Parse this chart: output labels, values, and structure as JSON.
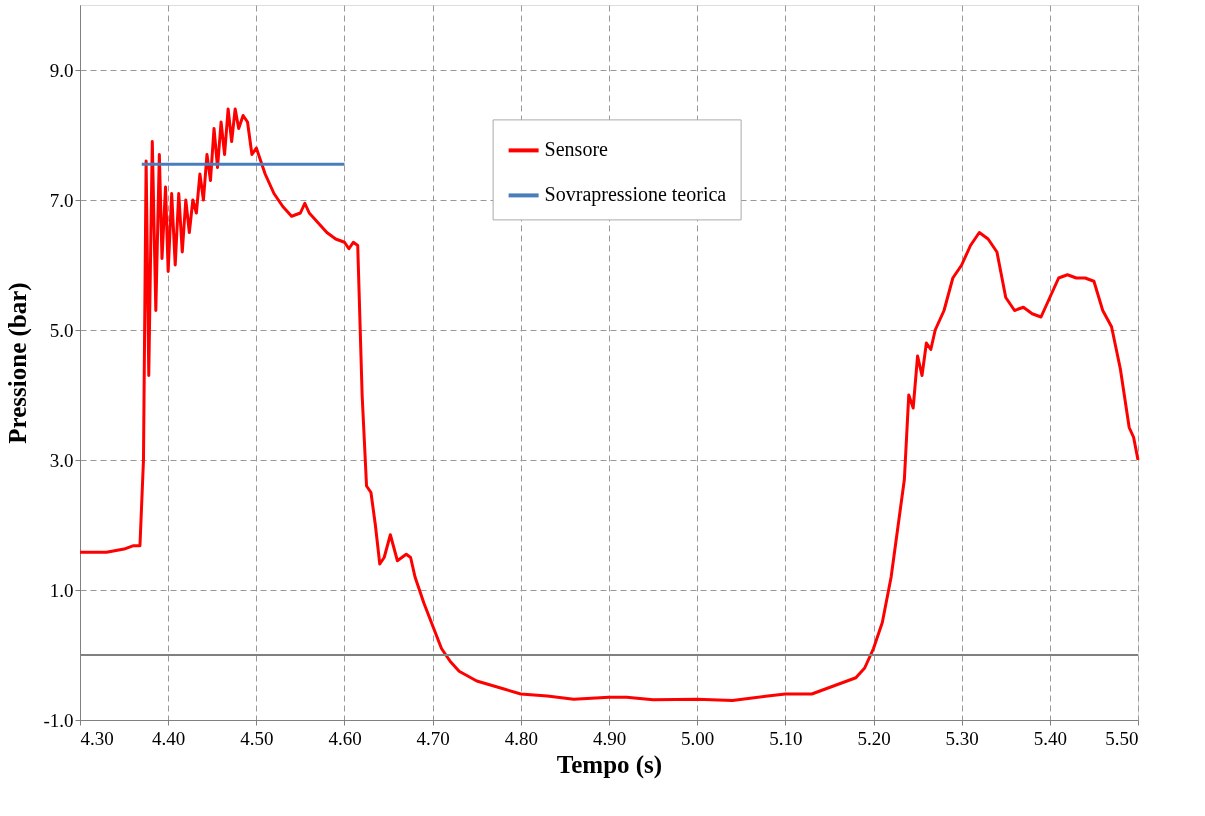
{
  "chart_data": {
    "type": "line",
    "xlabel": "Tempo (s)",
    "ylabel": "Pressione (bar)",
    "xlim": [
      4.3,
      5.5
    ],
    "ylim": [
      -1,
      10
    ],
    "xticks": [
      {
        "value": 4.3,
        "label": "4.30"
      },
      {
        "value": 4.4,
        "label": "4.40"
      },
      {
        "value": 4.5,
        "label": "4.50"
      },
      {
        "value": 4.6,
        "label": "4.60"
      },
      {
        "value": 4.7,
        "label": "4.70"
      },
      {
        "value": 4.8,
        "label": "4.80"
      },
      {
        "value": 4.9,
        "label": "4.90"
      },
      {
        "value": 5.0,
        "label": "5.00"
      },
      {
        "value": 5.1,
        "label": "5.10"
      },
      {
        "value": 5.2,
        "label": "5.20"
      },
      {
        "value": 5.3,
        "label": "5.30"
      },
      {
        "value": 5.4,
        "label": "5.40"
      },
      {
        "value": 5.5,
        "label": "5.50"
      }
    ],
    "yticks": [
      {
        "value": -1,
        "label": "-1.0"
      },
      {
        "value": 1,
        "label": "1.0"
      },
      {
        "value": 3,
        "label": "3.0"
      },
      {
        "value": 5,
        "label": "5.0"
      },
      {
        "value": 7,
        "label": "7.0"
      },
      {
        "value": 9,
        "label": "9.0"
      }
    ],
    "grid": true,
    "legend": "top",
    "line_style": "solid",
    "marker": "none",
    "ref_lines": [
      {
        "axis": "y",
        "value": 0,
        "label": null,
        "color": "#808080",
        "line_style": "solid"
      }
    ],
    "series": [
      {
        "name": "Sensore",
        "color": "#ff0000",
        "x": [
          4.3,
          4.33,
          4.35,
          4.36,
          4.368,
          4.372,
          4.375,
          4.378,
          4.382,
          4.386,
          4.39,
          4.393,
          4.397,
          4.4,
          4.404,
          4.408,
          4.412,
          4.416,
          4.42,
          4.424,
          4.428,
          4.432,
          4.436,
          4.44,
          4.444,
          4.448,
          4.452,
          4.456,
          4.46,
          4.464,
          4.468,
          4.472,
          4.476,
          4.48,
          4.485,
          4.49,
          4.495,
          4.5,
          4.505,
          4.51,
          4.52,
          4.53,
          4.54,
          4.55,
          4.555,
          4.56,
          4.57,
          4.58,
          4.59,
          4.6,
          4.605,
          4.61,
          4.615,
          4.62,
          4.625,
          4.63,
          4.635,
          4.64,
          4.645,
          4.652,
          4.66,
          4.67,
          4.675,
          4.68,
          4.69,
          4.7,
          4.71,
          4.72,
          4.73,
          4.75,
          4.78,
          4.8,
          4.83,
          4.86,
          4.9,
          4.92,
          4.95,
          5.0,
          5.04,
          5.08,
          5.1,
          5.13,
          5.15,
          5.18,
          5.19,
          5.2,
          5.21,
          5.22,
          5.23,
          5.235,
          5.24,
          5.245,
          5.25,
          5.255,
          5.26,
          5.265,
          5.27,
          5.28,
          5.29,
          5.3,
          5.31,
          5.32,
          5.33,
          5.34,
          5.35,
          5.355,
          5.36,
          5.37,
          5.38,
          5.39,
          5.4,
          5.41,
          5.42,
          5.43,
          5.44,
          5.45,
          5.46,
          5.47,
          5.48,
          5.49,
          5.495,
          5.5
        ],
        "values": [
          1.58,
          1.58,
          1.63,
          1.68,
          1.68,
          3.0,
          7.6,
          4.3,
          7.9,
          5.3,
          7.7,
          6.1,
          7.2,
          5.9,
          7.1,
          6.0,
          7.1,
          6.2,
          7.0,
          6.5,
          7.0,
          6.8,
          7.4,
          7.0,
          7.7,
          7.3,
          8.1,
          7.5,
          8.2,
          7.7,
          8.4,
          7.9,
          8.4,
          8.1,
          8.3,
          8.2,
          7.7,
          7.8,
          7.6,
          7.4,
          7.1,
          6.9,
          6.75,
          6.8,
          6.95,
          6.8,
          6.65,
          6.5,
          6.4,
          6.35,
          6.25,
          6.35,
          6.3,
          4.0,
          2.6,
          2.5,
          2.0,
          1.4,
          1.5,
          1.85,
          1.45,
          1.55,
          1.5,
          1.2,
          0.8,
          0.45,
          0.1,
          -0.1,
          -0.25,
          -0.4,
          -0.52,
          -0.6,
          -0.63,
          -0.68,
          -0.65,
          -0.65,
          -0.69,
          -0.68,
          -0.7,
          -0.63,
          -0.6,
          -0.6,
          -0.5,
          -0.35,
          -0.2,
          0.1,
          0.5,
          1.2,
          2.2,
          2.7,
          4.0,
          3.8,
          4.6,
          4.3,
          4.8,
          4.7,
          5.0,
          5.3,
          5.8,
          6.0,
          6.3,
          6.5,
          6.4,
          6.2,
          5.5,
          5.4,
          5.3,
          5.35,
          5.25,
          5.2,
          5.5,
          5.8,
          5.85,
          5.8,
          5.8,
          5.75,
          5.3,
          5.05,
          4.4,
          3.5,
          3.35,
          3.0
        ]
      },
      {
        "name": "Sovrapressione teorica",
        "color": "#4a7ebb",
        "x": [
          4.37,
          4.6
        ],
        "values": [
          7.55,
          7.55
        ]
      }
    ]
  }
}
